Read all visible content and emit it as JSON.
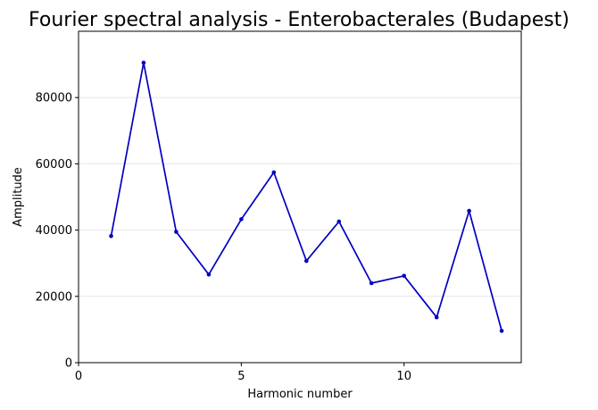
{
  "chart_data": {
    "type": "line",
    "title": "Fourier spectral analysis - Enterobacterales (Budapest)",
    "xlabel": "Harmonic number",
    "ylabel": "Amplitude",
    "x": [
      1,
      2,
      3,
      4,
      5,
      6,
      7,
      8,
      9,
      10,
      11,
      12,
      13
    ],
    "series": [
      {
        "values": [
          38200,
          90500,
          39500,
          26600,
          43300,
          57400,
          30700,
          42600,
          24000,
          26200,
          13700,
          45800,
          9600
        ],
        "color": "#0000c0"
      }
    ],
    "xlim": [
      0,
      13.6
    ],
    "ylim": [
      0,
      100000
    ],
    "xticks": [
      0,
      5,
      10
    ],
    "yticks": [
      0,
      20000,
      40000,
      60000,
      80000
    ],
    "grid": "horizontal",
    "grid_color": "#e6e6e6",
    "markers": true,
    "legend": "none"
  }
}
